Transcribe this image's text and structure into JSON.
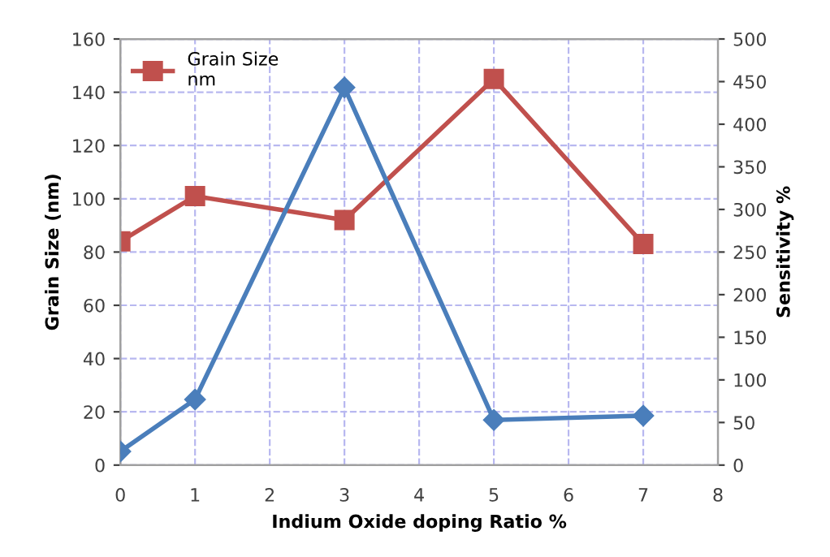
{
  "chart_data": {
    "type": "line",
    "xlabel": "Indium Oxide doping Ratio %",
    "ylabel": "Grain Size (nm)",
    "y2label": "Sensitivity %",
    "series": [
      {
        "name": "Grain Size\nnm",
        "color": "#c0504d",
        "marker": "square",
        "x": [
          0,
          1,
          3,
          5,
          7
        ],
        "values": [
          84,
          101,
          92,
          145,
          83
        ]
      },
      {
        "color": "#4a7ebb",
        "marker": "diamond",
        "axis": "y2",
        "x": [
          0,
          1,
          3,
          5,
          7
        ],
        "values": [
          16,
          77,
          443,
          53,
          58
        ]
      }
    ],
    "xlim": [
      0,
      8
    ],
    "xticks": [
      0,
      1,
      2,
      3,
      4,
      5,
      6,
      7,
      8
    ],
    "ylim": [
      0,
      160
    ],
    "yticks": [
      0,
      20,
      40,
      60,
      80,
      100,
      120,
      140,
      160
    ],
    "y2lim": [
      0,
      500
    ],
    "y2ticks": [
      0,
      50,
      100,
      150,
      200,
      250,
      300,
      350,
      400,
      450,
      500
    ],
    "grid": true,
    "legend": "top left",
    "line_style": "solid"
  }
}
